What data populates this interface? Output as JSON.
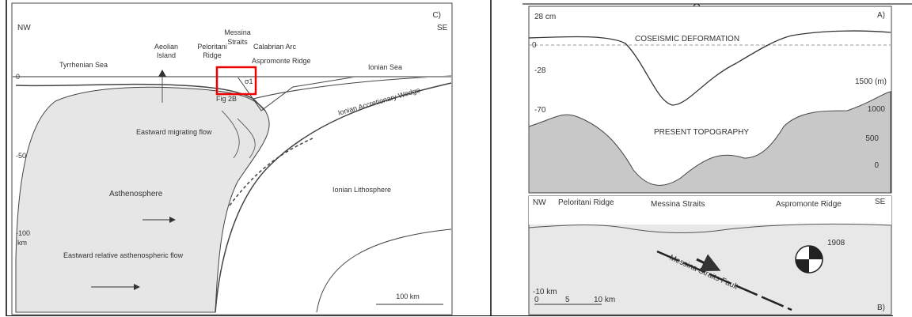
{
  "panel_c": {
    "label": "C)",
    "nw": "NW",
    "se": "SE",
    "tyrrhenian_sea": "Tyrrhenian Sea",
    "aeolian_island": [
      "Aeolian",
      "Island"
    ],
    "peloritani_ridge": [
      "Peloritani",
      "Ridge"
    ],
    "messina_straits": [
      "Messina",
      "Straits"
    ],
    "calabrian_arc": "Calabrian Arc",
    "aspromonte_ridge": "Aspromonte Ridge",
    "ionian_sea": "Ionian Sea",
    "depth_0": "0",
    "depth_50": "-50",
    "depth_100": [
      "-100",
      "km"
    ],
    "sigma": "σ1",
    "fig_ref": "Fig 2B",
    "wedge": "Ionian Accretionary Wedge",
    "migrating_flow": "Eastward migrating flow",
    "asthenosphere": "Asthenosphere",
    "ionian_lithosphere": "Ionian Lithosphere",
    "relative_flow": "Eastward relative asthenospheric flow",
    "scale": "100 km"
  },
  "panel_a": {
    "label": "A)",
    "def_28": "28 cm",
    "def_0": "0",
    "def_m28": "-28",
    "def_m70": "-70",
    "coseismic": "COSEISMIC DEFORMATION",
    "topo_1500": "1500 (m)",
    "topo_1000": "1000",
    "topo_500": "500",
    "topo_0": "0",
    "present_topography": "PRESENT TOPOGRAPHY"
  },
  "panel_b": {
    "label": "B)",
    "nw": "NW",
    "se": "SE",
    "peloritani_ridge": "Peloritani Ridge",
    "messina_straits": "Messina Straits",
    "aspromonte_ridge": "Aspromonte Ridge",
    "year": "1908",
    "fault": "Messina Straits Fault",
    "depth": "-10 km",
    "scale_0": "0",
    "scale_5": "5",
    "scale_10": "10 km"
  }
}
